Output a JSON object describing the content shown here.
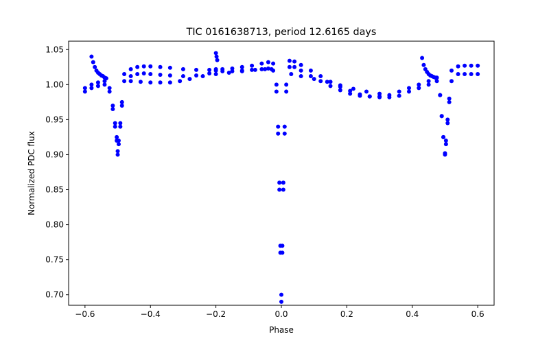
{
  "chart_data": {
    "type": "scatter",
    "title": "TIC 0161638713, period 12.6165 days",
    "xlabel": "Phase",
    "ylabel": "Normalized PDC flux",
    "xlim": [
      -0.65,
      0.65
    ],
    "ylim": [
      0.685,
      1.062
    ],
    "x_ticks": [
      -0.6,
      -0.4,
      -0.2,
      0.0,
      0.2,
      0.4,
      0.6
    ],
    "x_tick_labels": [
      "−0.6",
      "−0.4",
      "−0.2",
      "0.0",
      "0.2",
      "0.4",
      "0.6"
    ],
    "y_ticks": [
      0.7,
      0.75,
      0.8,
      0.85,
      0.9,
      0.95,
      1.0,
      1.05
    ],
    "y_tick_labels": [
      "0.70",
      "0.75",
      "0.80",
      "0.85",
      "0.90",
      "0.95",
      "1.00",
      "1.05"
    ],
    "grid": false,
    "marker_color": "#0000ff",
    "series": [
      {
        "x": [
          -0.6,
          -0.58,
          -0.56,
          -0.54,
          -0.525,
          -0.515,
          -0.508,
          -0.503,
          -0.5,
          -0.497,
          -0.492,
          -0.487,
          -0.48,
          -0.46,
          -0.44,
          -0.42,
          -0.4,
          -0.37,
          -0.34,
          -0.3,
          -0.26,
          -0.22,
          -0.2,
          -0.18,
          -0.15,
          -0.12,
          -0.09,
          -0.06,
          -0.04,
          -0.025,
          -0.015,
          -0.01,
          -0.006,
          -0.003,
          0.0,
          0.003,
          0.006,
          0.01,
          0.015,
          0.025,
          0.04,
          0.06,
          0.09,
          0.12,
          0.15,
          0.18,
          0.21,
          0.24,
          0.27,
          0.3,
          0.33,
          0.36,
          0.39,
          0.42,
          0.45,
          0.475,
          0.485,
          0.49,
          0.495,
          0.5,
          0.503,
          0.508,
          0.513,
          0.52,
          0.54,
          0.56,
          0.58,
          0.6
        ],
        "y": [
          0.99,
          0.995,
          0.998,
          1.0,
          0.99,
          0.965,
          0.94,
          0.92,
          0.9,
          0.915,
          0.94,
          0.97,
          1.005,
          1.012,
          1.015,
          1.016,
          1.015,
          1.014,
          1.013,
          1.012,
          1.013,
          1.016,
          1.02,
          1.019,
          1.019,
          1.02,
          1.021,
          1.022,
          1.023,
          1.02,
          0.99,
          0.93,
          0.85,
          0.76,
          0.69,
          0.76,
          0.85,
          0.93,
          0.99,
          1.025,
          1.025,
          1.02,
          1.012,
          1.005,
          0.998,
          0.992,
          0.987,
          0.984,
          0.983,
          0.983,
          0.985,
          0.99,
          0.995,
          1.0,
          1.005,
          1.01,
          0.985,
          0.955,
          0.925,
          0.9,
          0.915,
          0.945,
          0.975,
          1.005,
          1.015,
          1.015,
          1.015,
          1.015
        ]
      },
      {
        "x": [
          -0.6,
          -0.58,
          -0.56,
          -0.54,
          -0.525,
          -0.515,
          -0.508,
          -0.503,
          -0.5,
          -0.497,
          -0.492,
          -0.487,
          -0.48,
          -0.46,
          -0.44,
          -0.42,
          -0.4,
          -0.37,
          -0.34,
          -0.3,
          -0.26,
          -0.22,
          -0.2,
          -0.18,
          -0.15,
          -0.12,
          -0.09,
          -0.06,
          -0.04,
          -0.025,
          -0.015,
          -0.01,
          -0.006,
          -0.003,
          0.0,
          0.003,
          0.006,
          0.01,
          0.015,
          0.025,
          0.04,
          0.06,
          0.09,
          0.12,
          0.15,
          0.18,
          0.21,
          0.24,
          0.27,
          0.3,
          0.33,
          0.36,
          0.39,
          0.42,
          0.45,
          0.475,
          0.485,
          0.49,
          0.495,
          0.5,
          0.503,
          0.508,
          0.513,
          0.52,
          0.54,
          0.56,
          0.58,
          0.6
        ],
        "y": [
          0.995,
          1.0,
          1.003,
          1.005,
          0.995,
          0.97,
          0.945,
          0.925,
          0.905,
          0.92,
          0.945,
          0.975,
          1.015,
          1.022,
          1.025,
          1.026,
          1.026,
          1.025,
          1.024,
          1.022,
          1.021,
          1.021,
          1.022,
          1.022,
          1.023,
          1.025,
          1.027,
          1.03,
          1.032,
          1.03,
          1.0,
          0.94,
          0.86,
          0.77,
          0.7,
          0.77,
          0.86,
          0.94,
          1.0,
          1.034,
          1.033,
          1.028,
          1.02,
          1.012,
          1.004,
          0.997,
          0.991,
          0.986,
          0.983,
          0.982,
          0.982,
          0.984,
          0.99,
          0.995,
          1.0,
          1.005,
          0.985,
          0.955,
          0.925,
          0.902,
          0.92,
          0.95,
          0.98,
          1.02,
          1.026,
          1.027,
          1.027,
          1.027
        ]
      },
      {
        "x": [
          -0.58,
          -0.575,
          -0.57,
          -0.565,
          -0.56,
          -0.555,
          -0.55,
          -0.545,
          -0.54,
          -0.535,
          -0.2,
          -0.198,
          -0.196,
          0.43,
          0.435,
          0.44,
          0.445,
          0.45,
          0.455,
          0.46,
          0.465,
          0.47
        ],
        "y": [
          1.04,
          1.032,
          1.025,
          1.02,
          1.017,
          1.015,
          1.013,
          1.012,
          1.01,
          1.009,
          1.045,
          1.04,
          1.035,
          1.038,
          1.028,
          1.022,
          1.018,
          1.015,
          1.013,
          1.012,
          1.011,
          1.01
        ]
      },
      {
        "x": [
          -0.46,
          -0.43,
          -0.4,
          -0.37,
          -0.34,
          -0.31,
          -0.28,
          -0.24,
          -0.2,
          -0.16,
          -0.12,
          -0.08,
          -0.05,
          -0.03,
          0.03,
          0.06,
          0.1,
          0.14,
          0.18,
          0.22,
          0.26,
          0.3
        ],
        "y": [
          1.005,
          1.004,
          1.003,
          1.003,
          1.003,
          1.005,
          1.008,
          1.012,
          1.015,
          1.017,
          1.019,
          1.021,
          1.022,
          1.022,
          1.015,
          1.012,
          1.008,
          1.004,
          0.999,
          0.994,
          0.99,
          0.987
        ]
      }
    ]
  }
}
